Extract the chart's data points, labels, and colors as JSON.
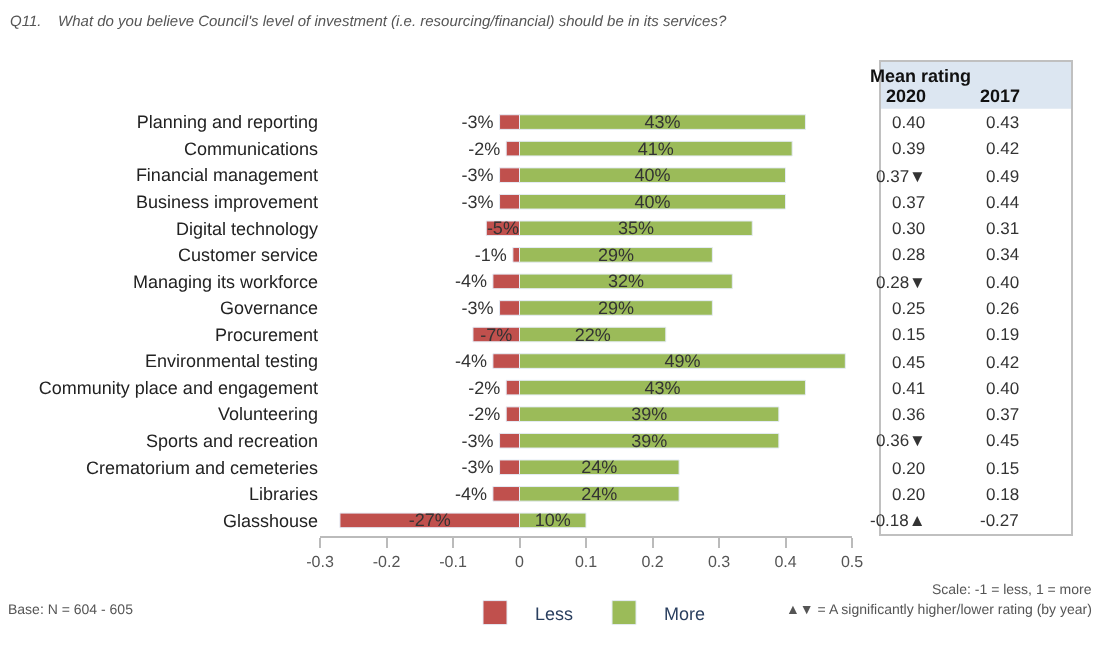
{
  "chart_data": [
    {
      "type": "bar",
      "orientation": "horizontal",
      "stacked": true,
      "title": "Q11.    What do you believe Council's level of investment (i.e. resourcing/financial) should be in its services?",
      "categories": [
        "Planning and reporting",
        "Communications",
        "Financial management",
        "Business improvement",
        "Digital technology",
        "Customer service",
        "Managing its workforce",
        "Governance",
        "Procurement",
        "Environmental testing",
        "Community place and engagement",
        "Volunteering",
        "Sports and recreation",
        "Crematorium and cemeteries",
        "Libraries",
        "Glasshouse"
      ],
      "series": [
        {
          "name": "Less",
          "color": "#c0504d",
          "values": [
            -0.03,
            -0.02,
            -0.03,
            -0.03,
            -0.05,
            -0.01,
            -0.04,
            -0.03,
            -0.07,
            -0.04,
            -0.02,
            -0.02,
            -0.03,
            -0.03,
            -0.04,
            -0.27
          ],
          "value_labels": [
            "-3%",
            "-2%",
            "-3%",
            "-3%",
            "-5%",
            "-1%",
            "-4%",
            "-3%",
            "-7%",
            "-4%",
            "-2%",
            "-2%",
            "-3%",
            "-3%",
            "-4%",
            "-27%"
          ]
        },
        {
          "name": "More",
          "color": "#9bbb59",
          "values": [
            0.43,
            0.41,
            0.4,
            0.4,
            0.35,
            0.29,
            0.32,
            0.29,
            0.22,
            0.49,
            0.43,
            0.39,
            0.39,
            0.24,
            0.24,
            0.1
          ],
          "value_labels": [
            "43%",
            "41%",
            "40%",
            "40%",
            "35%",
            "29%",
            "32%",
            "29%",
            "22%",
            "49%",
            "43%",
            "39%",
            "39%",
            "24%",
            "24%",
            "10%"
          ]
        }
      ],
      "xlim": [
        -0.3,
        0.5
      ],
      "xticks": [
        -0.3,
        -0.2,
        -0.1,
        0,
        0.1,
        0.2,
        0.3,
        0.4,
        0.5
      ],
      "legend": "bottom",
      "annotations": [
        "Base: N = 604 - 605",
        "Scale: -1 = less, 1 = more",
        "▲▼ = A significantly higher/lower rating (by year)"
      ]
    },
    {
      "type": "other",
      "title": "Mean rating",
      "annotations": [
        "2020",
        "2017",
        "0.40",
        "0.43",
        "0.39",
        "0.42",
        "0.37▼",
        "0.49",
        "0.37",
        "0.44",
        "0.30",
        "0.31",
        "0.28",
        "0.34",
        "0.28▼",
        "0.40",
        "0.25",
        "0.26",
        "0.15",
        "0.19",
        "0.45",
        "0.42",
        "0.41",
        "0.40",
        "0.36",
        "0.37",
        "0.36▼",
        "0.45",
        "0.20",
        "0.15",
        "0.20",
        "0.18",
        "-0.18▲",
        "-0.27"
      ]
    }
  ]
}
